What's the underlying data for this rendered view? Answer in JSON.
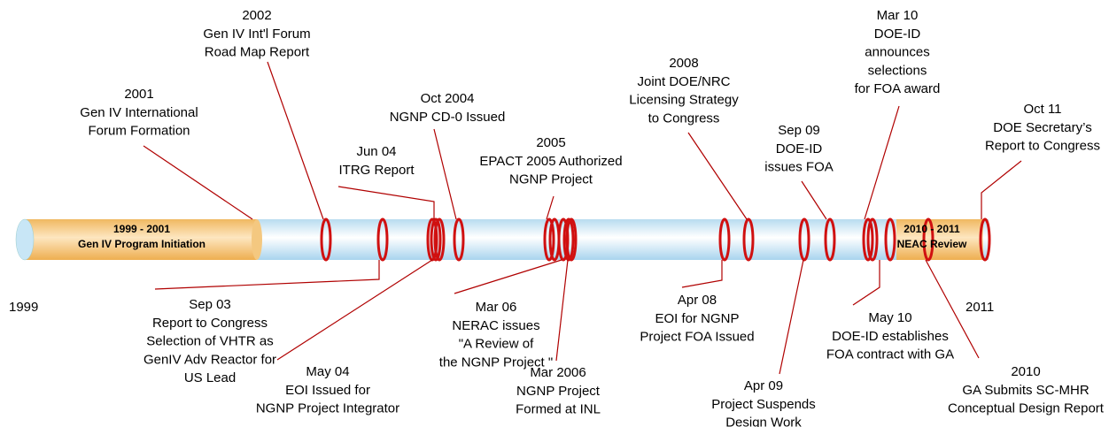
{
  "start_label": "1999",
  "end_label": "2011",
  "periods": [
    {
      "lines": [
        "1999 - 2001",
        "Gen IV Program Initiation"
      ]
    },
    {
      "lines": [
        "2010 - 2011",
        "NEAC Review"
      ]
    }
  ],
  "events_above": [
    {
      "lines": [
        "2001",
        "Gen IV International",
        "Forum Formation"
      ]
    },
    {
      "lines": [
        "2002",
        "Gen IV Int'l Forum",
        "Road Map Report"
      ]
    },
    {
      "lines": [
        "Jun 04",
        "ITRG Report"
      ]
    },
    {
      "lines": [
        "Oct 2004",
        "NGNP CD-0 Issued"
      ]
    },
    {
      "lines": [
        "2005",
        "EPACT 2005 Authorized",
        "NGNP Project"
      ]
    },
    {
      "lines": [
        "2008",
        "Joint DOE/NRC",
        "Licensing Strategy",
        "to Congress"
      ]
    },
    {
      "lines": [
        "Sep 09",
        "DOE-ID",
        "issues FOA"
      ]
    },
    {
      "lines": [
        "Mar 10",
        "DOE-ID",
        "announces",
        "selections",
        "for FOA award"
      ]
    },
    {
      "lines": [
        "Oct 11",
        "DOE Secretary’s",
        "Report to Congress"
      ]
    }
  ],
  "events_below": [
    {
      "lines": [
        "Sep 03",
        "Report to Congress",
        "Selection of VHTR as",
        "GenIV Adv Reactor for",
        "US Lead"
      ]
    },
    {
      "lines": [
        "May 04",
        "EOI Issued for",
        "NGNP Project Integrator"
      ]
    },
    {
      "lines": [
        "Mar 06",
        "NERAC issues",
        "\"A Review of",
        "the NGNP Project \""
      ]
    },
    {
      "lines": [
        "Mar 2006",
        "NGNP Project",
        "Formed at INL"
      ]
    },
    {
      "lines": [
        "Apr 08",
        "EOI for NGNP",
        "Project FOA Issued"
      ]
    },
    {
      "lines": [
        "Apr 09",
        "Project Suspends",
        "Design Work"
      ]
    },
    {
      "lines": [
        "May 10",
        "DOE-ID establishes",
        "FOA contract with GA"
      ]
    },
    {
      "lines": [
        "2010",
        "GA Submits SC-MHR",
        "Conceptual Design Report"
      ]
    }
  ]
}
